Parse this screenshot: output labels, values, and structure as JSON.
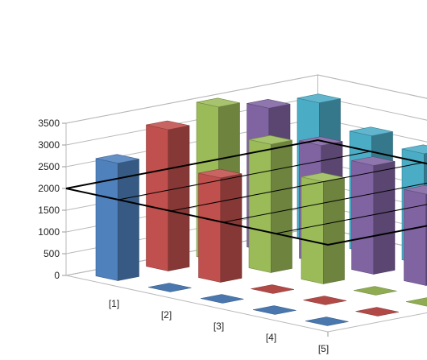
{
  "chart_data": {
    "type": "bar",
    "subtype": "3d-column",
    "title": "",
    "xlabel": "",
    "ylabel": "",
    "ylim": [
      0,
      3500
    ],
    "y_ticks": [
      0,
      500,
      1000,
      1500,
      2000,
      2500,
      3000,
      3500
    ],
    "y_tick_labels": [
      "0",
      "500",
      "1000",
      "1500",
      "2000",
      "2500",
      "3000",
      "3500"
    ],
    "categories": [
      "[1]",
      "[2]",
      "[3]",
      "[4]",
      "[5]"
    ],
    "grid": true,
    "legend": "none",
    "highlight_line_value": 2000,
    "series": [
      {
        "color": "#4F81BD",
        "values": [
          2700,
          0,
          0,
          0,
          0
        ]
      },
      {
        "color": "#C0504D",
        "values": [
          3250,
          2400,
          0,
          0,
          0
        ]
      },
      {
        "color": "#9BBB59",
        "values": [
          3550,
          2950,
          2350,
          0,
          0
        ]
      },
      {
        "color": "#8064A2",
        "values": [
          3300,
          2700,
          2500,
          2100,
          0
        ]
      },
      {
        "color": "#4BACC6",
        "values": [
          3200,
          2700,
          2550,
          2350,
          2250
        ]
      }
    ]
  }
}
